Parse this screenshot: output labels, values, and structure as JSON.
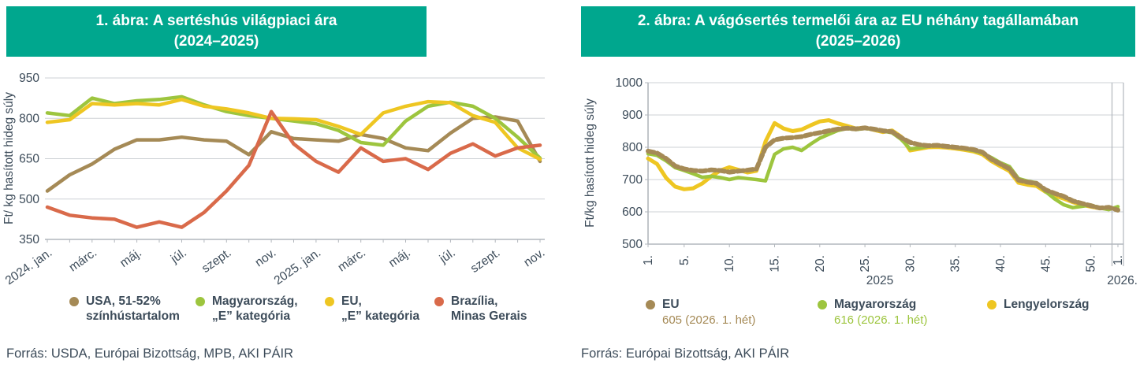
{
  "colors": {
    "header_bg": "#00a78e",
    "text": "#3d4c5a",
    "grid": "#cdd1d6",
    "axis": "#b2b7bd"
  },
  "panels": [
    {
      "title": "1. ábra: A sertéshús világpiaci ára\n(2024–2025)",
      "source": "Forrás: USDA, Európai Bizottság, MPB, AKI PÁIR",
      "legend": [
        {
          "label": "USA, 51-52%\nszínhústartalom",
          "color": "#a58a56"
        },
        {
          "label": "Magyarország,\n„E” kategória",
          "color": "#9dc53e"
        },
        {
          "label": "EU,\n„E” kategória",
          "color": "#eec622"
        },
        {
          "label": "Brazília,\nMinas Gerais",
          "color": "#d96a4a"
        }
      ]
    },
    {
      "title": "2. ábra: A vágósertés termelői ára az EU néhány tagállamában\n(2025–2026)",
      "source": "Forrás: Európai Bizottság, AKI PÁIR",
      "legend": [
        {
          "label": "EU",
          "color": "#a58a56",
          "annotation": "605 (2026. 1. hét)"
        },
        {
          "label": "Magyarország",
          "color": "#9dc53e",
          "annotation": "616 (2026. 1. hét)"
        },
        {
          "label": "Lengyelország",
          "color": "#eec622",
          "annotation": ""
        }
      ]
    }
  ],
  "chart_data": [
    {
      "type": "line",
      "title": "1. ábra: A sertéshús világpiaci ára (2024–2025)",
      "ylabel": "Ft/ kg hasított hideg súly",
      "ylim": [
        350,
        950
      ],
      "yticks": [
        350,
        500,
        650,
        800,
        950
      ],
      "grid": "horizontal",
      "legend_position": "bottom",
      "categories": [
        "2024. jan.",
        "febr.",
        "márc.",
        "ápr.",
        "máj.",
        "jún.",
        "júl.",
        "aug.",
        "szept.",
        "okt.",
        "nov.",
        "dec.",
        "2025. jan.",
        "febr.",
        "márc.",
        "ápr.",
        "máj.",
        "jún.",
        "júl.",
        "aug.",
        "szept.",
        "okt.",
        "nov."
      ],
      "xticks": [
        {
          "i": 0,
          "label": "2024. jan."
        },
        {
          "i": 2,
          "label": "márc."
        },
        {
          "i": 4,
          "label": "máj."
        },
        {
          "i": 6,
          "label": "júl."
        },
        {
          "i": 8,
          "label": "szept."
        },
        {
          "i": 10,
          "label": "nov."
        },
        {
          "i": 12,
          "label": "2025. jan."
        },
        {
          "i": 14,
          "label": "márc."
        },
        {
          "i": 16,
          "label": "máj."
        },
        {
          "i": 18,
          "label": "júl."
        },
        {
          "i": 20,
          "label": "szept."
        },
        {
          "i": 22,
          "label": "nov."
        }
      ],
      "series": [
        {
          "key": "usa",
          "name": "USA, 51-52% színhústartalom",
          "color": "#a58a56",
          "values": [
            530,
            590,
            630,
            685,
            720,
            720,
            730,
            720,
            715,
            665,
            750,
            725,
            720,
            715,
            740,
            725,
            690,
            680,
            745,
            800,
            805,
            790,
            640
          ]
        },
        {
          "key": "magyarorszag",
          "name": "Magyarország, „E” kategória",
          "color": "#9dc53e",
          "values": [
            820,
            810,
            875,
            855,
            865,
            870,
            880,
            850,
            825,
            810,
            800,
            790,
            780,
            755,
            710,
            700,
            790,
            845,
            860,
            845,
            800,
            730,
            652
          ]
        },
        {
          "key": "eu",
          "name": "EU, „E” kategória",
          "color": "#eec622",
          "values": [
            785,
            795,
            855,
            850,
            855,
            850,
            870,
            845,
            835,
            820,
            800,
            798,
            795,
            770,
            740,
            820,
            845,
            862,
            858,
            810,
            785,
            690,
            648
          ]
        },
        {
          "key": "brazilia",
          "name": "Brazília, Minas Gerais",
          "color": "#d96a4a",
          "values": [
            470,
            440,
            430,
            425,
            395,
            415,
            395,
            450,
            530,
            625,
            825,
            705,
            640,
            600,
            690,
            640,
            650,
            610,
            670,
            705,
            660,
            690,
            700
          ]
        }
      ]
    },
    {
      "type": "line",
      "title": "2. ábra: A vágósertés termelői ára az EU néhány tagállamában (2025–2026)",
      "ylabel": "Ft/kg hasított hideg súly",
      "ylim": [
        500,
        1000
      ],
      "yticks": [
        500,
        600,
        700,
        800,
        900,
        1000
      ],
      "grid": "horizontal",
      "legend_position": "bottom",
      "x_axis_years": [
        "2025",
        "2026."
      ],
      "categories": [
        1,
        2,
        3,
        4,
        5,
        6,
        7,
        8,
        9,
        10,
        11,
        12,
        13,
        14,
        15,
        16,
        17,
        18,
        19,
        20,
        21,
        22,
        23,
        24,
        25,
        26,
        27,
        28,
        29,
        30,
        31,
        32,
        33,
        34,
        35,
        36,
        37,
        38,
        39,
        40,
        41,
        42,
        43,
        44,
        45,
        46,
        47,
        48,
        49,
        50,
        51,
        52,
        53
      ],
      "xticks": [
        {
          "i": 0,
          "label": "1."
        },
        {
          "i": 4,
          "label": "5."
        },
        {
          "i": 9,
          "label": "10."
        },
        {
          "i": 14,
          "label": "15."
        },
        {
          "i": 19,
          "label": "20."
        },
        {
          "i": 24,
          "label": "25."
        },
        {
          "i": 29,
          "label": "30."
        },
        {
          "i": 34,
          "label": "35."
        },
        {
          "i": 39,
          "label": "40."
        },
        {
          "i": 44,
          "label": "45."
        },
        {
          "i": 49,
          "label": "50."
        },
        {
          "i": 52,
          "label": "1."
        }
      ],
      "series": [
        {
          "key": "eu",
          "name": "EU",
          "color": "#a58a56",
          "last_value_label": "605 (2026. 1. hét)",
          "values": [
            788,
            782,
            765,
            742,
            733,
            728,
            726,
            730,
            728,
            723,
            726,
            729,
            733,
            800,
            823,
            828,
            830,
            833,
            840,
            845,
            851,
            856,
            859,
            857,
            860,
            856,
            851,
            848,
            830,
            815,
            808,
            805,
            806,
            803,
            800,
            797,
            793,
            785,
            763,
            748,
            733,
            698,
            692,
            688,
            668,
            657,
            648,
            634,
            626,
            619,
            612,
            614,
            605
          ]
        },
        {
          "key": "magyarorszag",
          "name": "Magyarország",
          "color": "#9dc53e",
          "last_value_label": "616 (2026. 1. hét)",
          "values": [
            780,
            775,
            758,
            737,
            728,
            718,
            707,
            710,
            706,
            700,
            706,
            703,
            700,
            696,
            778,
            795,
            800,
            790,
            810,
            828,
            840,
            852,
            858,
            855,
            858,
            856,
            850,
            845,
            825,
            795,
            798,
            803,
            805,
            802,
            799,
            795,
            790,
            782,
            768,
            752,
            740,
            703,
            695,
            690,
            663,
            640,
            622,
            613,
            617,
            621,
            612,
            607,
            616
          ]
        },
        {
          "key": "lengyelorszag",
          "name": "Lengyelország",
          "color": "#eec622",
          "values": [
            765,
            748,
            705,
            678,
            670,
            673,
            688,
            710,
            728,
            738,
            730,
            722,
            727,
            818,
            875,
            858,
            850,
            855,
            868,
            880,
            884,
            874,
            866,
            858,
            861,
            854,
            847,
            852,
            833,
            790,
            795,
            800,
            801,
            799,
            796,
            792,
            787,
            778,
            757,
            741,
            726,
            690,
            684,
            680,
            662,
            650,
            641,
            630,
            622,
            616,
            611,
            613,
            608
          ]
        }
      ]
    }
  ]
}
